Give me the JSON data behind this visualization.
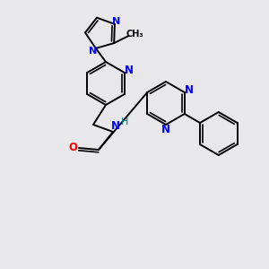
{
  "bg_color": "#e8e8eb",
  "atom_colors": {
    "N": "#0000ff",
    "O": "#ff0000",
    "C": "#000000",
    "H": "#008080"
  },
  "bond_color": "#000000",
  "bond_width": 1.4,
  "figsize": [
    3.0,
    3.0
  ],
  "dpi": 100
}
